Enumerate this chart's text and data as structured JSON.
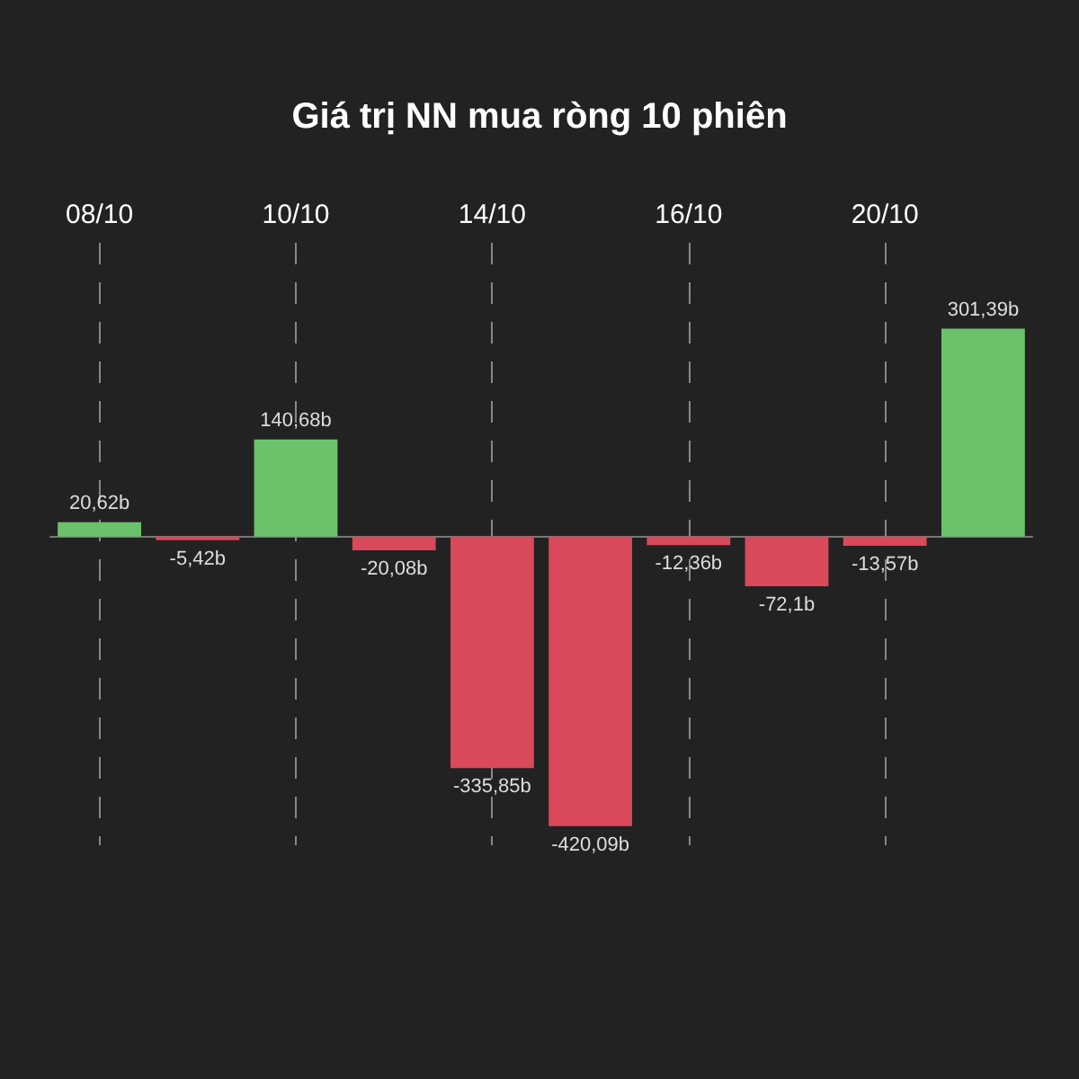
{
  "chart_data": {
    "type": "bar",
    "title": "Giá trị NN mua ròng 10 phiên",
    "categories": [
      "08/10",
      null,
      "10/10",
      null,
      "14/10",
      null,
      "16/10",
      null,
      "20/10",
      null
    ],
    "values": [
      20.62,
      -5.42,
      140.68,
      -20.08,
      -335.85,
      -420.09,
      -12.36,
      -72.1,
      -13.57,
      301.39
    ],
    "colors": [
      "#6cc26a",
      "#d9495b",
      "#6cc26a",
      "#d9495b",
      "#d9495b",
      "#d9495b",
      "#d9495b",
      "#d9495b",
      "#d9495b",
      "#6cc26a"
    ],
    "value_labels": [
      "20,62b",
      "-5,42b",
      "140,68b",
      "-20,08b",
      "-335,85b",
      "-420,09b",
      "-12,36b",
      "-72,1b",
      "-13,57b",
      "301,39b"
    ],
    "grid": "x"
  }
}
